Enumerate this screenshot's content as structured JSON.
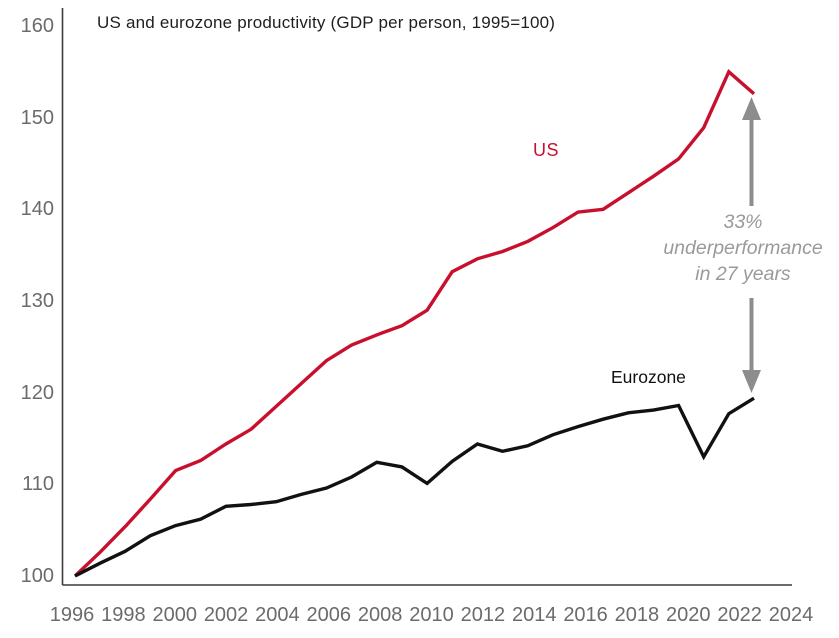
{
  "title": "US and eurozone productivity (GDP per person, 1995=100)",
  "labels": {
    "us": "US",
    "eurozone": "Eurozone"
  },
  "annotation": {
    "line1": "33%",
    "line2": "underperformance",
    "line3": "in 27 years"
  },
  "colors": {
    "us_line": "#c8102e",
    "eurozone_line": "#111111",
    "axis": "#3a3a3a",
    "tick_label": "#6b6b6b",
    "annotation_text": "#9a9a9a",
    "arrow": "#8d8d8d",
    "background": "#ffffff"
  },
  "chart_data": {
    "type": "line",
    "title": "US and eurozone productivity (GDP per person, 1995=100)",
    "x": [
      1995,
      1996,
      1997,
      1998,
      1999,
      2000,
      2001,
      2002,
      2003,
      2004,
      2005,
      2006,
      2007,
      2008,
      2009,
      2010,
      2011,
      2012,
      2013,
      2014,
      2015,
      2016,
      2017,
      2018,
      2019,
      2020,
      2021,
      2022
    ],
    "series": [
      {
        "name": "US",
        "color": "#c8102e",
        "values": [
          100,
          102.6,
          105.4,
          108.4,
          111.5,
          112.6,
          114.4,
          116.0,
          118.5,
          121.0,
          123.5,
          125.2,
          126.3,
          127.3,
          129.0,
          133.2,
          134.6,
          135.4,
          136.5,
          138.0,
          139.7,
          140.0,
          141.8,
          143.6,
          145.5,
          148.9,
          155.0,
          152.6
        ]
      },
      {
        "name": "Eurozone",
        "color": "#111111",
        "values": [
          100,
          101.4,
          102.7,
          104.4,
          105.5,
          106.2,
          107.6,
          107.8,
          108.1,
          108.9,
          109.6,
          110.8,
          112.4,
          111.9,
          110.1,
          112.5,
          114.4,
          113.6,
          114.2,
          115.4,
          116.3,
          117.1,
          117.8,
          118.1,
          118.6,
          113.0,
          117.7,
          119.4
        ]
      }
    ],
    "ylim": [
      100,
      160
    ],
    "yticks": [
      100,
      110,
      120,
      130,
      140,
      150,
      160
    ],
    "xticks": [
      1996,
      1998,
      2000,
      2002,
      2004,
      2006,
      2008,
      2010,
      2012,
      2014,
      2016,
      2018,
      2020,
      2022,
      2024
    ],
    "grid": false,
    "legend_position": "inline-labels",
    "annotation": "33% underperformance in 27 years — vertical double-headed arrow between US line end and Eurozone line end at right side"
  }
}
